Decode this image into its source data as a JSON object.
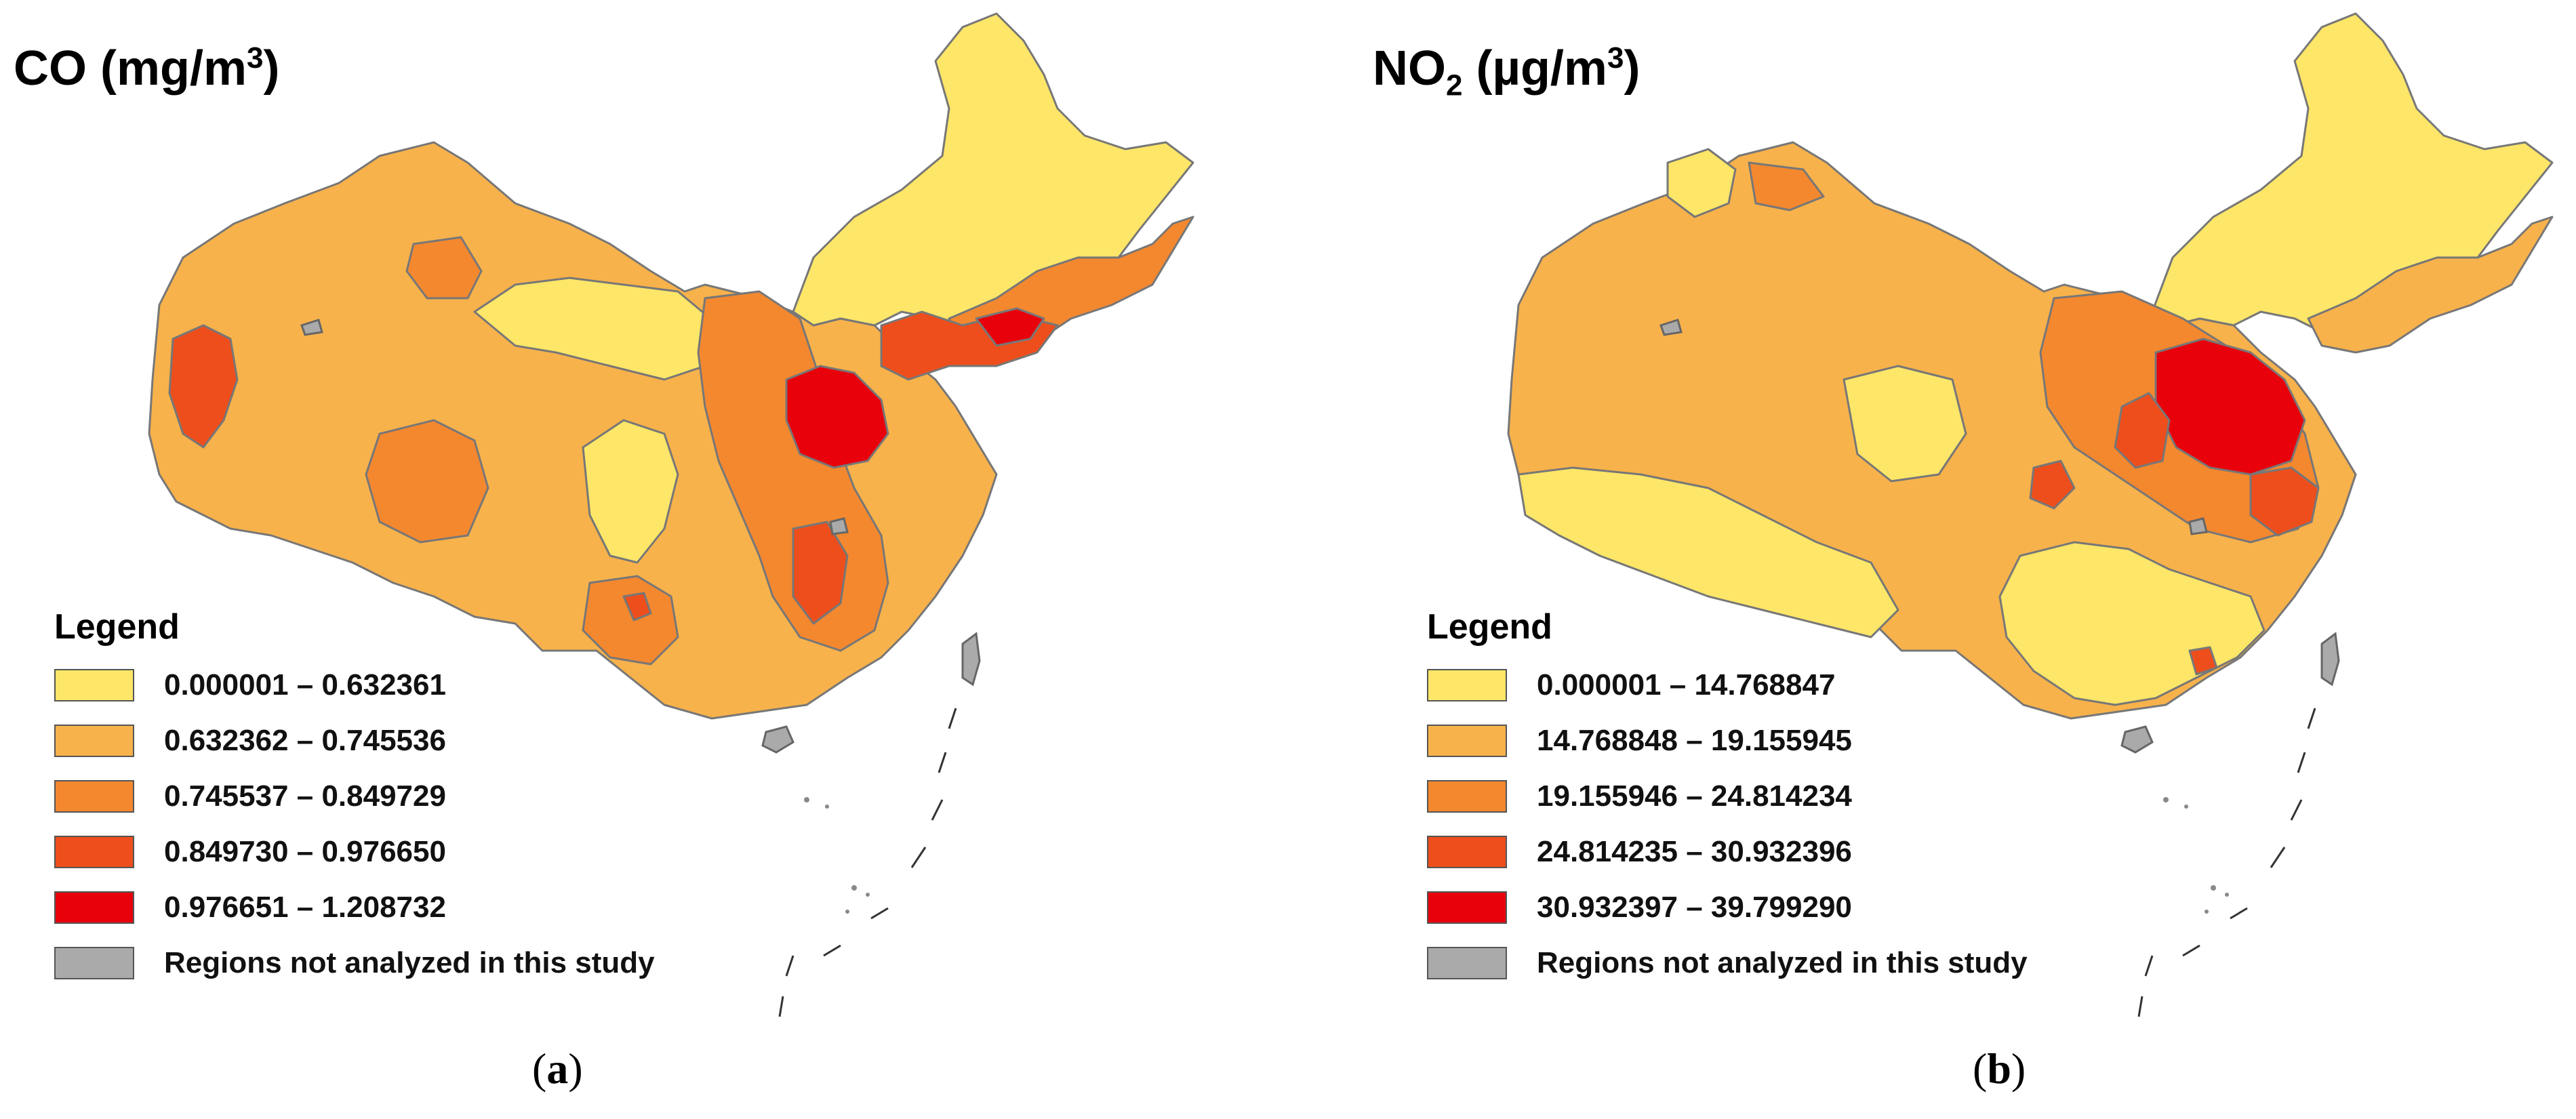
{
  "panels": [
    {
      "title": "CO (mg/m",
      "title_sup": "3",
      "title_end": ")",
      "caption": "a",
      "legend": {
        "title": "Legend",
        "items": [
          {
            "label": "0.000001 – 0.632361",
            "color": "#fde668"
          },
          {
            "label": "0.632362 – 0.745536",
            "color": "#f8b24b"
          },
          {
            "label": "0.745537 – 0.849729",
            "color": "#f4882f"
          },
          {
            "label": "0.849730 – 0.976650",
            "color": "#ee4e1c"
          },
          {
            "label": "0.976651 – 1.208732",
            "color": "#e8000b"
          },
          {
            "label": "Regions not analyzed in this study",
            "color": "#aaaaaa"
          }
        ]
      }
    },
    {
      "title": "NO",
      "title_sub": "2",
      "title_end": " (µg/m",
      "title_sup": "3",
      "title_end2": ")",
      "caption": "b",
      "legend": {
        "title": "Legend",
        "items": [
          {
            "label": "0.000001 – 14.768847",
            "color": "#fde668"
          },
          {
            "label": "14.768848 – 19.155945",
            "color": "#f8b24b"
          },
          {
            "label": "19.155946 – 24.814234",
            "color": "#f4882f"
          },
          {
            "label": "24.814235 – 30.932396",
            "color": "#ee4e1c"
          },
          {
            "label": "30.932397 – 39.799290",
            "color": "#e8000b"
          },
          {
            "label": "Regions not analyzed in this study",
            "color": "#aaaaaa"
          }
        ]
      }
    }
  ],
  "colors": {
    "class1": "#fde668",
    "class2": "#f8b24b",
    "class3": "#f4882f",
    "class4": "#ee4e1c",
    "class5": "#e8000b",
    "not_analyzed": "#aaaaaa",
    "boundary": "#777777"
  }
}
